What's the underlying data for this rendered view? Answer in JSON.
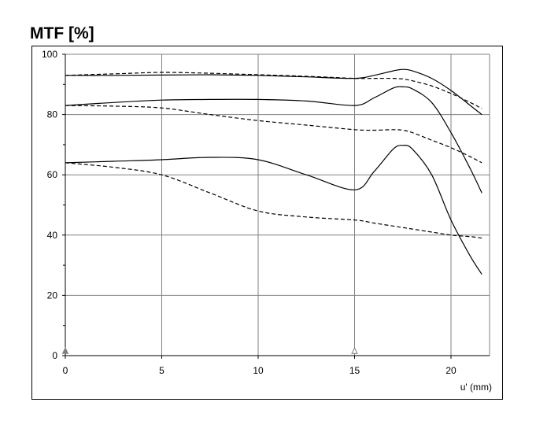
{
  "chart_data": {
    "type": "line",
    "title": "MTF [%]",
    "xlabel": "u' (mm)",
    "ylabel": "",
    "xlim": [
      0,
      22
    ],
    "ylim": [
      0,
      100
    ],
    "xticks": [
      0,
      5,
      10,
      15,
      20
    ],
    "yticks": [
      0,
      20,
      40,
      60,
      80,
      100
    ],
    "grid": true,
    "series": [
      {
        "style": "solid",
        "x": [
          0,
          2.5,
          5,
          7.5,
          10,
          12.5,
          15,
          16,
          17,
          17.5,
          18,
          19,
          20,
          21,
          21.6
        ],
        "y": [
          93,
          93,
          93.1,
          93.2,
          93,
          92.5,
          92,
          93,
          94.5,
          95,
          94.5,
          92,
          88,
          83,
          80
        ]
      },
      {
        "style": "dashed",
        "x": [
          0,
          2.5,
          5,
          7.5,
          10,
          12.5,
          15,
          16,
          17,
          17.5,
          18,
          19,
          20,
          21,
          21.6
        ],
        "y": [
          93,
          93.5,
          94,
          93.7,
          93.2,
          92.7,
          92,
          92,
          92,
          91.8,
          91.2,
          89.5,
          87,
          84,
          82
        ]
      },
      {
        "style": "solid",
        "x": [
          0,
          2.5,
          5,
          7.5,
          10,
          12.5,
          15,
          16,
          17,
          17.5,
          18,
          19,
          20,
          21,
          21.6
        ],
        "y": [
          83,
          84,
          84.8,
          85,
          85,
          84.5,
          83,
          85.5,
          88.8,
          89.2,
          88.5,
          84,
          74,
          62,
          54
        ]
      },
      {
        "style": "dashed",
        "x": [
          0,
          2.5,
          5,
          7.5,
          10,
          12.5,
          15,
          16,
          17,
          17.5,
          18,
          19,
          20,
          21,
          21.6
        ],
        "y": [
          83,
          82.8,
          82.2,
          80,
          78,
          76.5,
          75,
          74.8,
          75,
          74.8,
          74,
          71.5,
          69,
          66,
          64
        ]
      },
      {
        "style": "solid",
        "x": [
          0,
          2.5,
          5,
          7.5,
          10,
          12.5,
          15,
          16,
          17,
          17.5,
          18,
          19,
          20,
          21,
          21.6
        ],
        "y": [
          64,
          64.5,
          65,
          65.8,
          65,
          60,
          55,
          61,
          68.5,
          69.8,
          68.5,
          60,
          45,
          33,
          27
        ]
      },
      {
        "style": "dashed",
        "x": [
          0,
          2.5,
          5,
          7.5,
          10,
          12.5,
          15,
          16,
          17,
          17.5,
          18,
          19,
          20,
          21,
          21.6
        ],
        "y": [
          64,
          62.5,
          60,
          54,
          48,
          46,
          45,
          44,
          43,
          42.5,
          42,
          41,
          40,
          39.5,
          39
        ]
      }
    ],
    "markers": [
      {
        "x": 0,
        "y": 1.5,
        "shape": "filled-triangle"
      },
      {
        "x": 15,
        "y": 1.5,
        "shape": "hollow-triangle"
      }
    ],
    "colors": {
      "line": "#000000",
      "grid": "#808080",
      "marker": "#808080"
    }
  }
}
